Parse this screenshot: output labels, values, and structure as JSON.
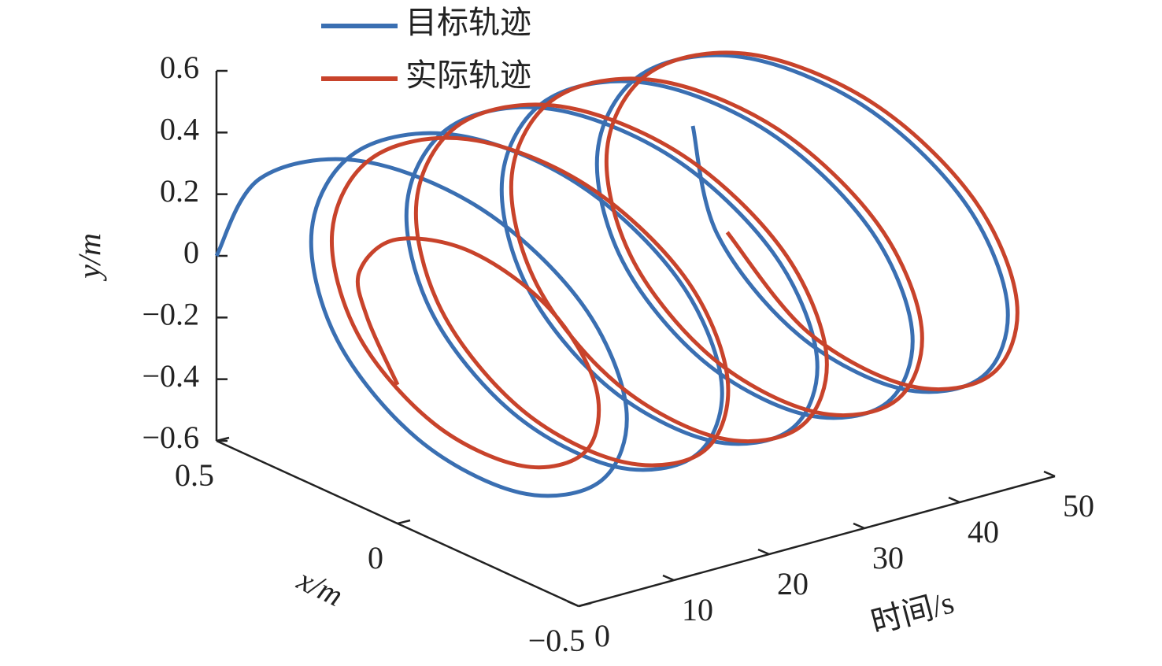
{
  "chart_data": {
    "type": "line3d",
    "xlabel": "x/m",
    "ylabel": "y/m",
    "tlabel": "时间/s",
    "xlim": [
      -0.5,
      0.5
    ],
    "ylim": [
      -0.6,
      0.6
    ],
    "tlim": [
      0,
      50
    ],
    "xticks": [
      {
        "value": -0.5,
        "label": "−0.5"
      },
      0,
      0.5
    ],
    "yticks": [
      {
        "value": -0.6,
        "label": "−0.6"
      },
      {
        "value": -0.4,
        "label": "−0.4"
      },
      {
        "value": -0.2,
        "label": "−0.2"
      },
      0,
      0.2,
      0.4,
      0.6
    ],
    "tticks": [
      0,
      10,
      20,
      30,
      40,
      50
    ],
    "t": [
      0,
      1,
      2,
      3,
      4,
      5,
      6,
      7,
      8,
      9,
      10,
      11,
      12,
      13,
      14,
      15,
      16,
      17,
      18,
      19,
      20,
      21,
      22,
      23,
      24,
      25,
      26,
      27,
      28,
      29,
      30,
      31,
      32,
      33,
      34,
      35,
      36,
      37,
      38,
      39,
      40,
      41,
      42,
      43,
      44,
      45,
      46,
      47,
      48,
      49,
      50
    ],
    "series": [
      {
        "name": "目标轨迹",
        "color": "#3a6fb2",
        "x": [
          0.5,
          0.405,
          0.155,
          -0.155,
          -0.405,
          -0.5,
          -0.405,
          -0.155,
          0.155,
          0.405,
          0.5,
          0.405,
          0.155,
          -0.155,
          -0.405,
          -0.5,
          -0.405,
          -0.155,
          0.155,
          0.405,
          0.5,
          0.405,
          0.155,
          -0.155,
          -0.405,
          -0.5,
          -0.405,
          -0.155,
          0.155,
          0.405,
          0.5,
          0.405,
          0.155,
          -0.155,
          -0.405,
          -0.5,
          -0.405,
          -0.155,
          0.155,
          0.405,
          0.5,
          0.405,
          0.155,
          -0.155,
          -0.405,
          -0.5,
          -0.405,
          -0.155,
          0.155,
          0.405,
          0.5
        ],
        "y": [
          0,
          0.294,
          0.476,
          0.476,
          0.294,
          0,
          -0.294,
          -0.476,
          -0.476,
          -0.294,
          0,
          0.294,
          0.476,
          0.476,
          0.294,
          0,
          -0.294,
          -0.476,
          -0.476,
          -0.294,
          0,
          0.294,
          0.476,
          0.476,
          0.294,
          0,
          -0.294,
          -0.476,
          -0.476,
          -0.294,
          0,
          0.294,
          0.476,
          0.476,
          0.294,
          0,
          -0.294,
          -0.476,
          -0.476,
          -0.294,
          0,
          0.294,
          0.476,
          0.476,
          0.294,
          0,
          -0.294,
          -0.476,
          -0.476,
          -0.294,
          0
        ]
      },
      {
        "name": "实际轨迹",
        "color": "#c8432b",
        "x": [
          0,
          0.11,
          0.158,
          0.082,
          -0.098,
          -0.288,
          -0.39,
          -0.336,
          -0.133,
          0.138,
          0.373,
          0.47,
          0.385,
          0.149,
          -0.15,
          -0.397,
          -0.49,
          -0.401,
          -0.153,
          0.155,
          0.405,
          0.5,
          0.405,
          0.155,
          -0.155,
          -0.405,
          -0.5,
          -0.405,
          -0.155,
          0.155,
          0.405,
          0.5,
          0.405,
          0.155,
          -0.155,
          -0.405,
          -0.5,
          -0.405,
          -0.155,
          0.155,
          0.405,
          0.5,
          0.405,
          0.155,
          -0.155,
          -0.405,
          -0.5,
          -0.405,
          -0.155,
          0.155,
          0.405
        ],
        "y": [
          -0.15,
          0,
          0.115,
          0.252,
          0.3,
          0.209,
          0,
          -0.244,
          -0.409,
          -0.424,
          -0.27,
          0,
          0.279,
          0.457,
          0.462,
          0.288,
          0,
          -0.291,
          -0.471,
          -0.476,
          -0.294,
          0,
          0.294,
          0.476,
          0.476,
          0.294,
          0,
          -0.294,
          -0.476,
          -0.476,
          -0.294,
          0,
          0.294,
          0.476,
          0.476,
          0.294,
          0,
          -0.294,
          -0.476,
          -0.476,
          -0.294,
          0,
          0.294,
          0.476,
          0.476,
          0.294,
          0,
          -0.294,
          -0.476,
          -0.476,
          -0.294
        ]
      }
    ]
  }
}
